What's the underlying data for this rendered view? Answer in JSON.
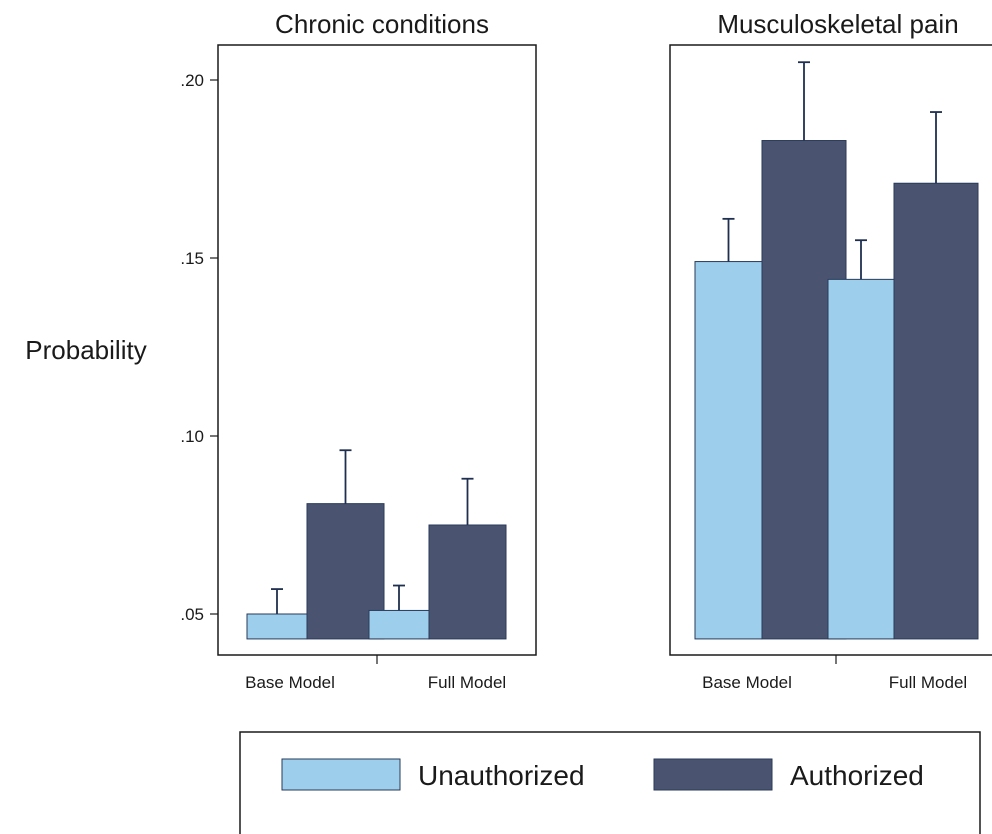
{
  "chart_data": {
    "type": "bar",
    "ylabel": "Probability",
    "ylim": [
      0.043,
      0.213
    ],
    "baseline": 0.043,
    "yticks": [
      0.05,
      0.1,
      0.15,
      0.2
    ],
    "ytick_labels": [
      ".05",
      ".10",
      ".15",
      ".20"
    ],
    "categories": [
      "Base Model",
      "Full Model"
    ],
    "series_colors": {
      "Unauthorized": "#9dceec",
      "Authorized": "#4a5470"
    },
    "legend": {
      "position": "bottom",
      "entries": [
        {
          "name": "Unauthorized",
          "color": "#9dceec"
        },
        {
          "name": "Authorized",
          "color": "#4a5470"
        }
      ]
    },
    "panels": [
      {
        "title": "Chronic conditions",
        "series": [
          {
            "name": "Unauthorized",
            "values": [
              0.05,
              0.051
            ],
            "upper": [
              0.057,
              0.058
            ]
          },
          {
            "name": "Authorized",
            "values": [
              0.081,
              0.075
            ],
            "upper": [
              0.096,
              0.088
            ]
          }
        ]
      },
      {
        "title": "Musculoskeletal pain",
        "series": [
          {
            "name": "Unauthorized",
            "values": [
              0.149,
              0.144
            ],
            "upper": [
              0.161,
              0.155
            ]
          },
          {
            "name": "Authorized",
            "values": [
              0.183,
              0.171
            ],
            "upper": [
              0.205,
              0.191
            ]
          }
        ]
      }
    ]
  }
}
